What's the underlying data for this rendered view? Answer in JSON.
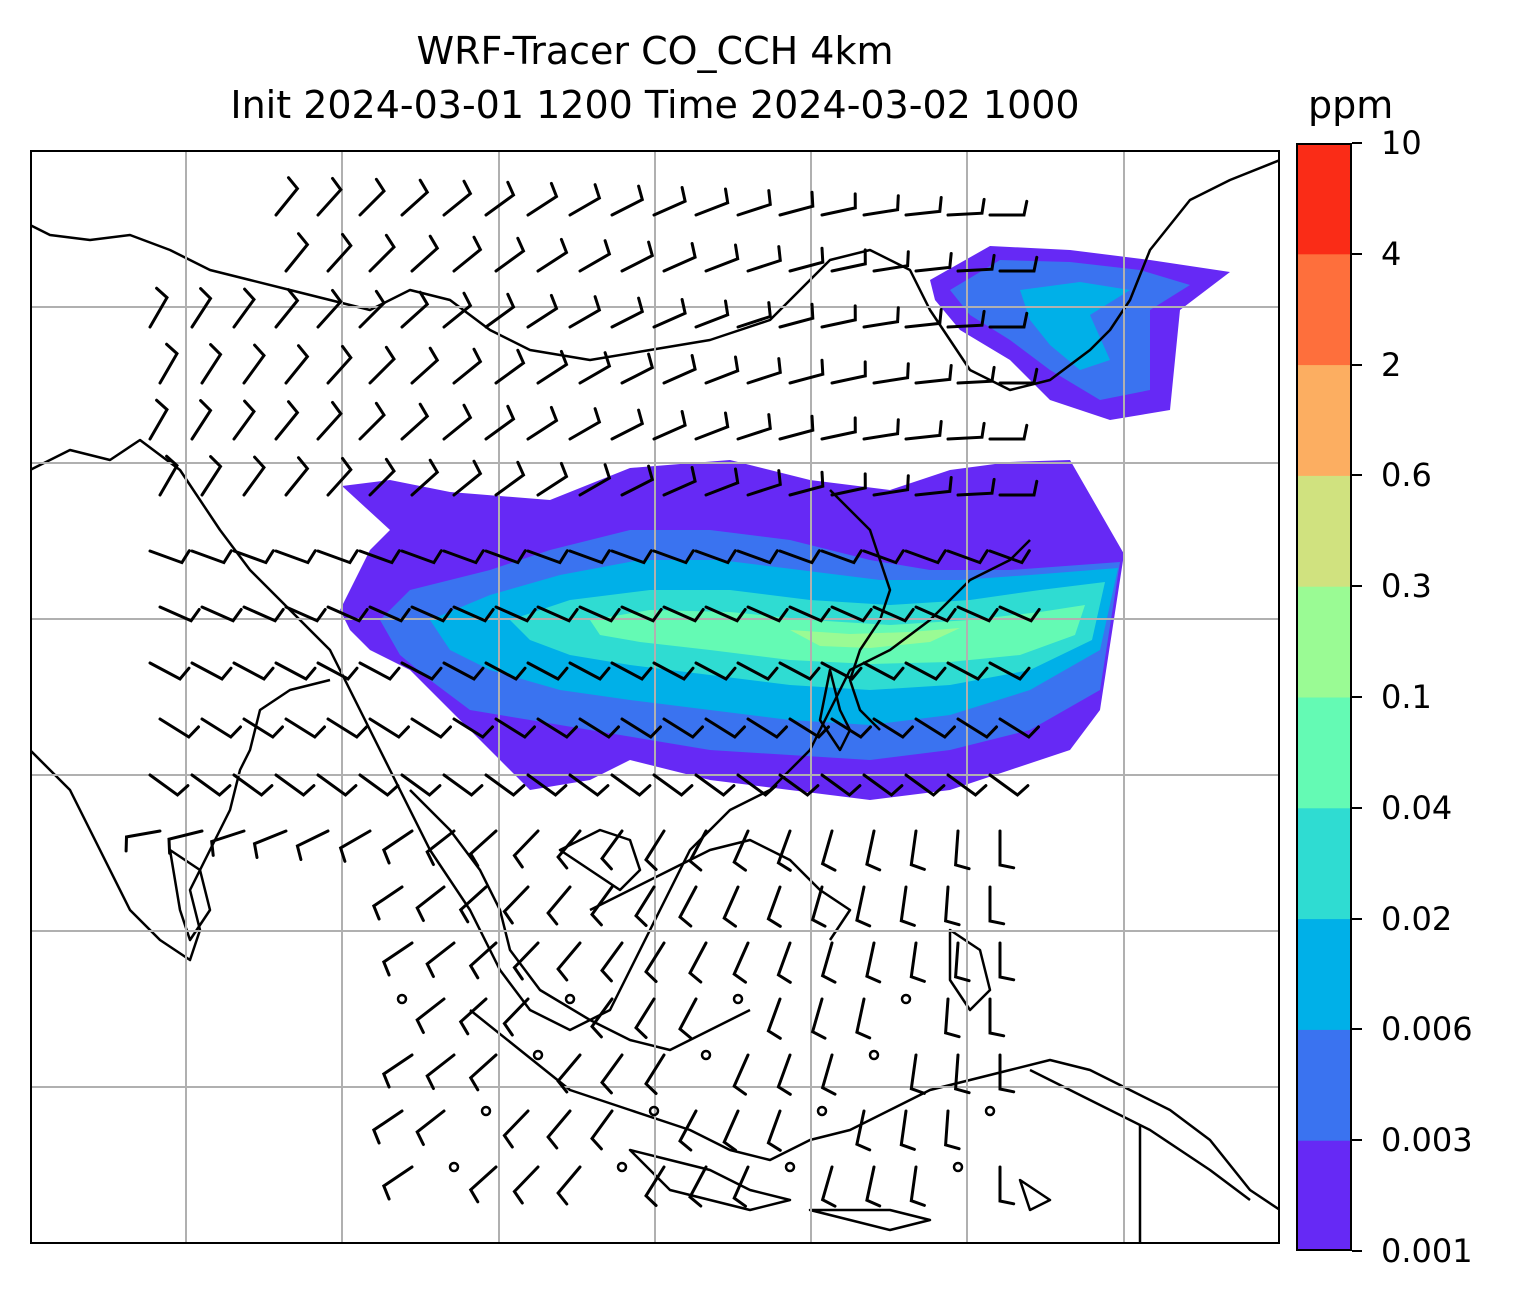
{
  "title": {
    "line1": "WRF-Tracer CO_CCH 4km",
    "line2": "Init 2024-03-01 1200 Time 2024-03-02 1000"
  },
  "colorbar": {
    "unit": "ppm",
    "levels": [
      "0.001",
      "0.003",
      "0.006",
      "0.02",
      "0.04",
      "0.1",
      "0.3",
      "0.6",
      "2",
      "4",
      "10"
    ],
    "colors": [
      "#6629f5",
      "#3a73f0",
      "#00b0e8",
      "#2fdcd2",
      "#64fab4",
      "#9afb94",
      "#d0e27f",
      "#fcae61",
      "#fe6f3c",
      "#fa2c17"
    ]
  },
  "map": {
    "gridlines": true,
    "features": [
      "coastlines",
      "country-borders",
      "wind-barbs",
      "tracer-shading"
    ]
  }
}
